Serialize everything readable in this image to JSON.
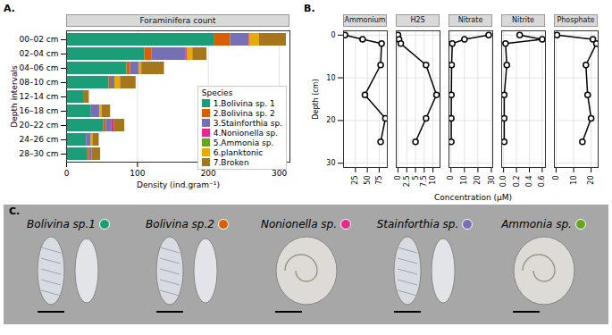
{
  "chart_data": [
    {
      "type": "bar",
      "panel": "A.",
      "title": "Foraminifera count",
      "orientation": "horizontal",
      "stacked": true,
      "grid": true,
      "legend": "bottom-right",
      "legend_title": "Species",
      "categories": [
        "00–02 cm",
        "02–04 cm",
        "04–06 cm",
        "08–10 cm",
        "12–14 cm",
        "16–18 cm",
        "20–22 cm",
        "24–26 cm",
        "28–30 cm"
      ],
      "xlabel": "Density (ind.gram⁻¹)",
      "ylabel": "Depth intervals",
      "xlim": [
        0,
        315
      ],
      "xticks": [
        0,
        100,
        200,
        300
      ],
      "series": [
        {
          "name": "1.Bolivina sp. 1",
          "color": "#1b9e77",
          "values": [
            209,
            110,
            85,
            60,
            24,
            35,
            52,
            28,
            30
          ]
        },
        {
          "name": "2.Bolivina sp. 2",
          "color": "#d95f02",
          "values": [
            22,
            10,
            5,
            3,
            0,
            0,
            4,
            0,
            2
          ]
        },
        {
          "name": "3.Stainforthia sp.",
          "color": "#7570b3",
          "values": [
            26,
            48,
            12,
            5,
            0,
            12,
            8,
            6,
            4
          ]
        },
        {
          "name": "4.Nonionella sp.",
          "color": "#e7298a",
          "values": [
            1,
            2,
            0,
            0,
            0,
            0,
            3,
            0,
            0
          ]
        },
        {
          "name": "5.Ammonia sp.",
          "color": "#66a61e",
          "values": [
            0,
            0,
            0,
            0,
            0,
            0,
            0,
            0,
            0
          ]
        },
        {
          "name": "6.planktonic",
          "color": "#e6ab02",
          "values": [
            14,
            8,
            4,
            8,
            0,
            3,
            0,
            3,
            0
          ]
        },
        {
          "name": "7.Broken",
          "color": "#a6761d",
          "values": [
            38,
            20,
            32,
            22,
            8,
            12,
            15,
            9,
            12
          ]
        }
      ]
    },
    {
      "type": "line",
      "panel": "B.",
      "xlabel": "Concentration (µM)",
      "ylabel": "Depth (cm)",
      "ylim": [
        31,
        -1
      ],
      "yticks": [
        0,
        10,
        20,
        30
      ],
      "grid": true,
      "marker": "circle",
      "color": "#000000",
      "y": [
        0,
        1,
        2,
        7,
        14,
        19.5,
        25
      ],
      "facets": [
        {
          "title": "Ammonium",
          "values": [
            3,
            40,
            80,
            78,
            45,
            88,
            78
          ],
          "xlim": [
            0,
            92
          ],
          "xticks": [
            25,
            50,
            75
          ]
        },
        {
          "title": "H2S",
          "values": [
            0,
            0.3,
            0.8,
            8,
            11,
            8,
            5
          ],
          "xlim": [
            -0.5,
            12
          ],
          "xticks": [
            0,
            2.5,
            5,
            7.5,
            10
          ]
        },
        {
          "title": "Nitrate",
          "values": [
            28,
            10,
            1,
            0.5,
            0.3,
            0.2,
            0.2
          ],
          "xlim": [
            -1.5,
            31
          ],
          "xticks": [
            0,
            10,
            20,
            30
          ]
        },
        {
          "title": "Nitrite",
          "values": [
            0.25,
            0.6,
            0.03,
            0.05,
            0.01,
            0.01,
            0.01
          ],
          "xlim": [
            -0.03,
            0.65
          ],
          "xticks": [
            {
              "value": 0,
              "label": "0.0"
            },
            {
              "value": 0.2,
              "label": "0.2"
            },
            {
              "value": 0.4,
              "label": "0.4"
            },
            {
              "value": 0.6,
              "label": "0.6"
            }
          ]
        },
        {
          "title": "Phosphate",
          "values": [
            0.5,
            21,
            23,
            17,
            18,
            20,
            15
          ],
          "xlim": [
            -1,
            24
          ],
          "xticks": [
            0,
            10,
            20
          ]
        }
      ]
    }
  ],
  "panel_c": {
    "panel": "C.",
    "items": [
      {
        "name": "Bolivina sp.1",
        "color": "#1b9e77"
      },
      {
        "name": "Bolivina sp.2",
        "color": "#d95f02"
      },
      {
        "name": "Nonionella sp.",
        "color": "#e7298a"
      },
      {
        "name": "Stainforthia sp.",
        "color": "#7570b3"
      },
      {
        "name": "Ammonia sp.",
        "color": "#66a61e"
      }
    ]
  }
}
